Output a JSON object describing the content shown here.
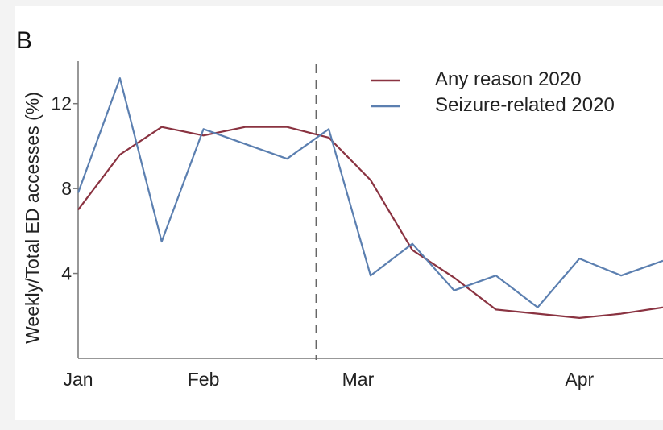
{
  "panel_label": "B",
  "chart_data": {
    "type": "line",
    "title": "",
    "xlabel": "",
    "ylabel": "Weekly/Total ED accesses (%)",
    "x": [
      1,
      2,
      3,
      4,
      5,
      6,
      7,
      8,
      9,
      10,
      11,
      12,
      13,
      14,
      15
    ],
    "x_ticks": [
      {
        "label": "Jan",
        "pos": 1
      },
      {
        "label": "Feb",
        "pos": 4
      },
      {
        "label": "Mar",
        "pos": 7.7
      },
      {
        "label": "Apr",
        "pos": 13
      }
    ],
    "xlim": [
      1,
      15
    ],
    "y_ticks": [
      4,
      8,
      12
    ],
    "ylim": [
      0,
      14
    ],
    "vline": 6.7,
    "grid": false,
    "legend": "top-right",
    "series": [
      {
        "name": "Any reason 2020",
        "color": "#8a3341",
        "values": [
          7.0,
          9.6,
          10.9,
          10.5,
          10.9,
          10.9,
          10.4,
          8.4,
          5.1,
          3.8,
          2.3,
          2.1,
          1.9,
          2.1,
          2.4
        ]
      },
      {
        "name": "Seizure-related 2020",
        "color": "#5b7fb0",
        "values": [
          7.8,
          13.2,
          5.5,
          10.8,
          10.1,
          9.4,
          10.8,
          3.9,
          5.4,
          3.2,
          3.9,
          2.4,
          4.7,
          3.9,
          4.6
        ]
      }
    ]
  }
}
